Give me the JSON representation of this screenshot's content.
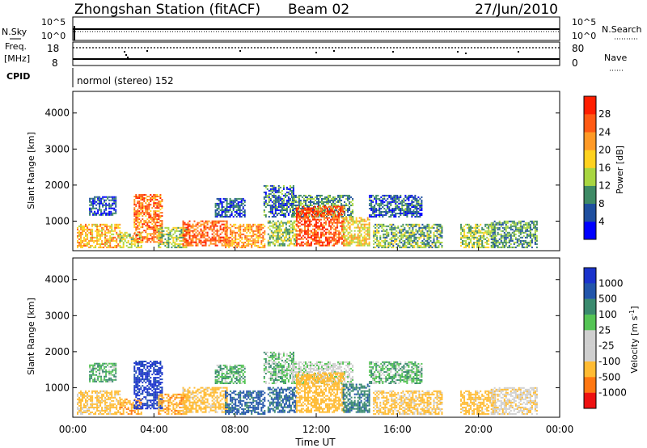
{
  "header": {
    "station": "Zhongshan Station (fitACF)",
    "beam": "Beam 02",
    "date": "27/Jun/2010"
  },
  "top_panels": {
    "nsky_label": "N.Sky",
    "nsky_ticks": [
      "10^5",
      "10^0"
    ],
    "nsearch_label": "N.Search",
    "nsearch_ticks": [
      "10^5",
      "10^0"
    ],
    "freq_label": [
      "Freq.",
      "[MHz]"
    ],
    "freq_ticks": [
      "18",
      "8"
    ],
    "nave_label": "Nave",
    "nave_ticks": [
      "80",
      "0"
    ],
    "cpid_label": "CPID",
    "cpid_text": "normol (stereo) 152"
  },
  "colors": {
    "power_scale": [
      "#0000ff",
      "#1f4f9f",
      "#3e8a65",
      "#a8d641",
      "#ffd21f",
      "#ff9a26",
      "#ff5a14",
      "#ff1e00"
    ],
    "velocity_scale": [
      "#ee1111",
      "#ff7711",
      "#ffbb33",
      "#cfcfcf",
      "#cfcfcf",
      "#55c455",
      "#3a8a6e",
      "#2255aa",
      "#1a33cc"
    ]
  },
  "chart_data": [
    {
      "type": "heatmap",
      "name": "power",
      "ylabel": "Slant Range [km]",
      "yticks": [
        1000,
        2000,
        3000,
        4000
      ],
      "ylim": [
        180,
        4600
      ],
      "xlim": [
        0,
        24
      ],
      "colorbar_label": "Power [dB]",
      "colorbar_ticks": [
        "4",
        "8",
        "12",
        "16",
        "20",
        "24",
        "28"
      ],
      "colorbar_range": [
        0,
        32
      ]
    },
    {
      "type": "heatmap",
      "name": "velocity",
      "ylabel": "Slant Range [km]",
      "yticks": [
        1000,
        2000,
        3000,
        4000
      ],
      "ylim": [
        180,
        4600
      ],
      "xlim": [
        0,
        24
      ],
      "xticks": [
        "00:00",
        "04:00",
        "08:00",
        "12:00",
        "16:00",
        "20:00",
        "00:00"
      ],
      "xlabel": "Time UT",
      "colorbar_label": "Velocity [m s",
      "colorbar_label_sup": "-1",
      "colorbar_label_end": "]",
      "colorbar_ticks": [
        "-1000",
        "-500",
        "-100",
        "-25",
        "25",
        "100",
        "500",
        "1000"
      ]
    }
  ],
  "echo_regions": [
    {
      "t0": 0.2,
      "t1": 2.3,
      "r0": 250,
      "r1": 900,
      "p": 20,
      "v": -150
    },
    {
      "t0": 0.8,
      "t1": 2.1,
      "r0": 1150,
      "r1": 1650,
      "p": 6,
      "v": 20
    },
    {
      "t0": 2.3,
      "t1": 3.4,
      "r0": 250,
      "r1": 700,
      "p": 15,
      "v": -400
    },
    {
      "t0": 3.0,
      "t1": 4.4,
      "r0": 400,
      "r1": 1750,
      "p": 24,
      "v": 700
    },
    {
      "t0": 4.2,
      "t1": 5.6,
      "r0": 250,
      "r1": 800,
      "p": 14,
      "v": -400
    },
    {
      "t0": 5.4,
      "t1": 7.6,
      "r0": 300,
      "r1": 1000,
      "p": 26,
      "v": -200
    },
    {
      "t0": 7.0,
      "t1": 8.5,
      "r0": 1100,
      "r1": 1600,
      "p": 6,
      "v": 20
    },
    {
      "t0": 7.5,
      "t1": 9.5,
      "r0": 250,
      "r1": 900,
      "p": 22,
      "v": 150
    },
    {
      "t0": 9.4,
      "t1": 10.9,
      "r0": 1100,
      "r1": 2000,
      "p": 8,
      "v": 10
    },
    {
      "t0": 9.6,
      "t1": 11.0,
      "r0": 300,
      "r1": 1000,
      "p": 14,
      "v": 120
    },
    {
      "t0": 10.8,
      "t1": 13.8,
      "r0": 1100,
      "r1": 1700,
      "p": 10,
      "v": -15
    },
    {
      "t0": 11.0,
      "t1": 13.4,
      "r0": 300,
      "r1": 1400,
      "p": 27,
      "v": -300
    },
    {
      "t0": 13.3,
      "t1": 14.6,
      "r0": 300,
      "r1": 1100,
      "p": 18,
      "v": 80
    },
    {
      "t0": 14.6,
      "t1": 17.2,
      "r0": 1100,
      "r1": 1700,
      "p": 7,
      "v": 15
    },
    {
      "t0": 14.8,
      "t1": 18.2,
      "r0": 250,
      "r1": 900,
      "p": 12,
      "v": -150
    },
    {
      "t0": 19.1,
      "t1": 20.8,
      "r0": 250,
      "r1": 900,
      "p": 14,
      "v": -200
    },
    {
      "t0": 20.6,
      "t1": 22.9,
      "r0": 250,
      "r1": 1000,
      "p": 10,
      "v": -80
    }
  ]
}
